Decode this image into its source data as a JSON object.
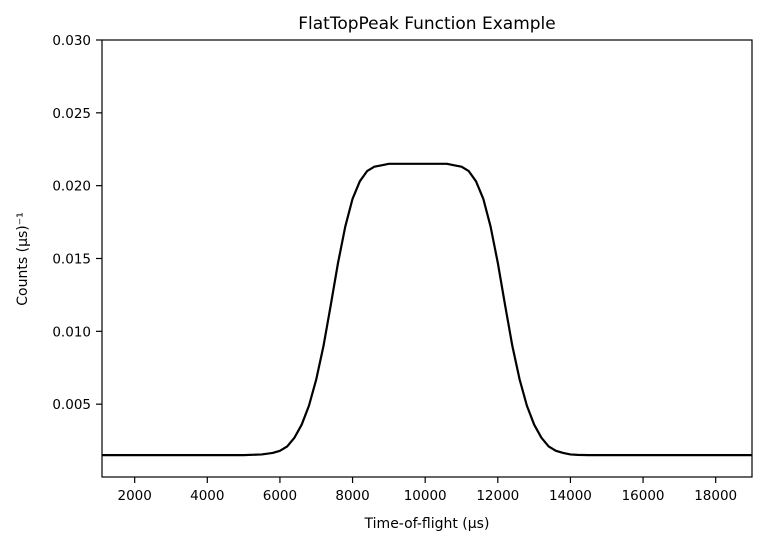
{
  "chart_data": {
    "type": "line",
    "title": "FlatTopPeak Function Example",
    "xlabel": "Time-of-flight (μs)",
    "ylabel": "Counts (μs)⁻¹",
    "xlim": [
      1100,
      19000
    ],
    "ylim": [
      0.0,
      0.03
    ],
    "xticks": [
      2000,
      4000,
      6000,
      8000,
      10000,
      12000,
      14000,
      16000,
      18000
    ],
    "xtick_labels": [
      "2000",
      "4000",
      "6000",
      "8000",
      "10000",
      "12000",
      "14000",
      "16000",
      "18000"
    ],
    "yticks": [
      0.005,
      0.01,
      0.015,
      0.02,
      0.025,
      0.03
    ],
    "ytick_labels": [
      "0.005",
      "0.010",
      "0.015",
      "0.020",
      "0.025",
      "0.030"
    ],
    "grid": false,
    "legend": "none",
    "line_color": "#000000",
    "series": [
      {
        "x": [
          1100,
          2000,
          3000,
          4000,
          5000,
          5500,
          5800,
          6000,
          6200,
          6400,
          6600,
          6800,
          7000,
          7200,
          7400,
          7600,
          7800,
          8000,
          8200,
          8400,
          8600,
          8800,
          9000,
          9200,
          9400,
          9600,
          9800,
          10000,
          10200,
          10400,
          10600,
          10800,
          11000,
          11200,
          11400,
          11600,
          11800,
          12000,
          12200,
          12400,
          12600,
          12800,
          13000,
          13200,
          13400,
          13600,
          13800,
          14000,
          14200,
          14500,
          15000,
          16000,
          17000,
          18000,
          19000
        ],
        "values": [
          0.0015,
          0.0015,
          0.0015,
          0.0015,
          0.0015,
          0.00155,
          0.00165,
          0.0018,
          0.0021,
          0.0027,
          0.0036,
          0.0049,
          0.0067,
          0.009,
          0.0118,
          0.0147,
          0.0172,
          0.0191,
          0.0203,
          0.021,
          0.0213,
          0.0214,
          0.0215,
          0.0215,
          0.0215,
          0.0215,
          0.0215,
          0.0215,
          0.0215,
          0.0215,
          0.0215,
          0.0214,
          0.0213,
          0.021,
          0.0203,
          0.0191,
          0.0172,
          0.0147,
          0.0118,
          0.009,
          0.0067,
          0.0049,
          0.0036,
          0.0027,
          0.0021,
          0.0018,
          0.00165,
          0.00155,
          0.00152,
          0.0015,
          0.0015,
          0.0015,
          0.0015,
          0.0015,
          0.0015
        ]
      }
    ]
  }
}
